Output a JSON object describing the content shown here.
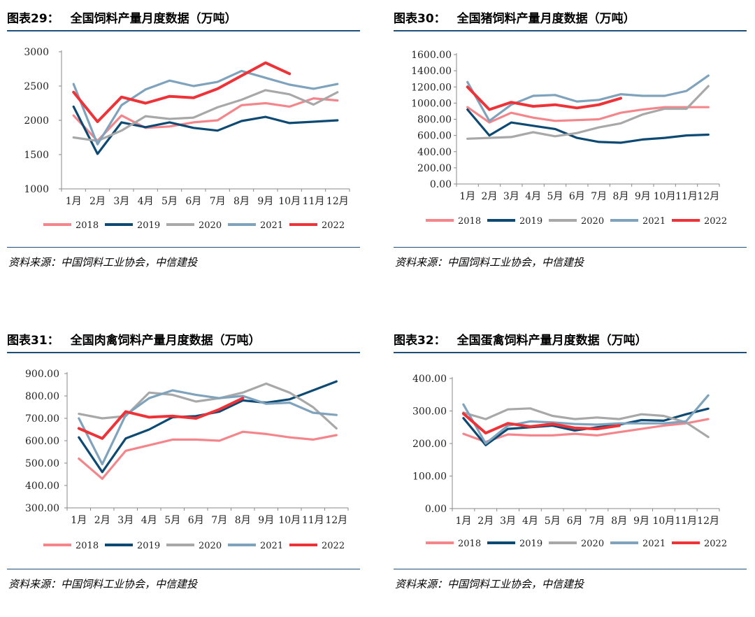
{
  "months": [
    "1月",
    "2月",
    "3月",
    "4月",
    "5月",
    "6月",
    "7月",
    "8月",
    "9月",
    "10月",
    "11月",
    "12月"
  ],
  "colors": {
    "2018": "#f4868b",
    "2019": "#0d4a73",
    "2020": "#a8a8a8",
    "2021": "#7fa3bd",
    "2022": "#ee3338",
    "rule": "#1f4e79"
  },
  "chart_data": [
    {
      "id": "c1",
      "type": "line",
      "label": "图表29：",
      "title": "全国饲料产量月度数据（万吨）",
      "source": "资料来源：中国饲料工业协会，中信建投",
      "ylim": [
        1000,
        3000
      ],
      "yticks": [
        "1000",
        "1500",
        "2000",
        "2500",
        "3000"
      ],
      "series": [
        {
          "name": "2018",
          "values": [
            2070,
            1700,
            2070,
            1890,
            1910,
            1970,
            2000,
            2220,
            2250,
            2200,
            2320,
            2290
          ]
        },
        {
          "name": "2019",
          "values": [
            2200,
            1510,
            1970,
            1900,
            1970,
            1890,
            1850,
            1990,
            2050,
            1960,
            1980,
            2000
          ]
        },
        {
          "name": "2020",
          "values": [
            1750,
            1700,
            1850,
            2060,
            2020,
            2040,
            2190,
            2300,
            2440,
            2380,
            2230,
            2410
          ]
        },
        {
          "name": "2021",
          "values": [
            2530,
            1650,
            2220,
            2450,
            2580,
            2500,
            2560,
            2720,
            2620,
            2520,
            2460,
            2530
          ]
        },
        {
          "name": "2022",
          "values": [
            2410,
            1980,
            2340,
            2250,
            2350,
            2330,
            2460,
            2650,
            2840,
            2680,
            null,
            null
          ]
        }
      ]
    },
    {
      "id": "c2",
      "type": "line",
      "label": "图表30：",
      "title": "全国猪饲料产量月度数据（万吨）",
      "source": "资料来源：中国饲料工业协会，中信建投",
      "ylim": [
        0,
        1600
      ],
      "yticks": [
        "0.00",
        "200.00",
        "400.00",
        "600.00",
        "800.00",
        "1000.00",
        "1200.00",
        "1400.00",
        "1600.00"
      ],
      "series": [
        {
          "name": "2018",
          "values": [
            950,
            760,
            880,
            820,
            780,
            790,
            800,
            880,
            920,
            950,
            950,
            950
          ]
        },
        {
          "name": "2019",
          "values": [
            920,
            600,
            760,
            720,
            680,
            570,
            520,
            510,
            550,
            570,
            600,
            610
          ]
        },
        {
          "name": "2020",
          "values": [
            560,
            570,
            580,
            640,
            590,
            630,
            700,
            750,
            860,
            930,
            930,
            1210
          ]
        },
        {
          "name": "2021",
          "values": [
            1260,
            780,
            980,
            1090,
            1100,
            1020,
            1040,
            1110,
            1090,
            1090,
            1150,
            1340
          ]
        },
        {
          "name": "2022",
          "values": [
            1200,
            920,
            1010,
            960,
            980,
            940,
            980,
            1060,
            null,
            null,
            null,
            null
          ]
        }
      ]
    },
    {
      "id": "c3",
      "type": "line",
      "label": "图表31：",
      "title": "全国肉禽饲料产量月度数据（万吨）",
      "source": "资料来源：中国饲料工业协会，中信建投",
      "ylim": [
        300,
        900
      ],
      "yticks": [
        "300.00",
        "400.00",
        "500.00",
        "600.00",
        "700.00",
        "800.00",
        "900.00"
      ],
      "series": [
        {
          "name": "2018",
          "values": [
            520,
            430,
            555,
            580,
            605,
            605,
            600,
            640,
            630,
            615,
            605,
            625
          ]
        },
        {
          "name": "2019",
          "values": [
            615,
            460,
            610,
            650,
            705,
            710,
            730,
            780,
            770,
            785,
            825,
            865
          ]
        },
        {
          "name": "2020",
          "values": [
            720,
            700,
            710,
            815,
            805,
            775,
            790,
            815,
            855,
            815,
            750,
            655
          ]
        },
        {
          "name": "2021",
          "values": [
            700,
            495,
            715,
            790,
            825,
            805,
            790,
            800,
            765,
            770,
            725,
            715
          ]
        },
        {
          "name": "2022",
          "values": [
            655,
            610,
            730,
            705,
            710,
            700,
            740,
            790,
            null,
            null,
            null,
            null
          ]
        }
      ]
    },
    {
      "id": "c4",
      "type": "line",
      "label": "图表32：",
      "title": "全国蛋禽饲料产量月度数据（万吨）",
      "source": "资料来源：中国饲料工业协会，中信建投",
      "ylim": [
        0,
        400
      ],
      "yticks": [
        "0.00",
        "100.00",
        "200.00",
        "300.00",
        "400.00"
      ],
      "series": [
        {
          "name": "2018",
          "values": [
            230,
            205,
            228,
            225,
            225,
            230,
            225,
            235,
            245,
            255,
            262,
            275
          ]
        },
        {
          "name": "2019",
          "values": [
            278,
            195,
            245,
            250,
            255,
            240,
            250,
            258,
            272,
            270,
            290,
            307
          ]
        },
        {
          "name": "2020",
          "values": [
            295,
            275,
            305,
            308,
            285,
            275,
            280,
            275,
            290,
            285,
            265,
            220
          ]
        },
        {
          "name": "2021",
          "values": [
            320,
            200,
            255,
            268,
            265,
            260,
            258,
            262,
            262,
            262,
            268,
            348
          ]
        },
        {
          "name": "2022",
          "values": [
            292,
            232,
            262,
            252,
            260,
            248,
            245,
            255,
            null,
            null,
            null,
            null
          ]
        }
      ]
    }
  ]
}
